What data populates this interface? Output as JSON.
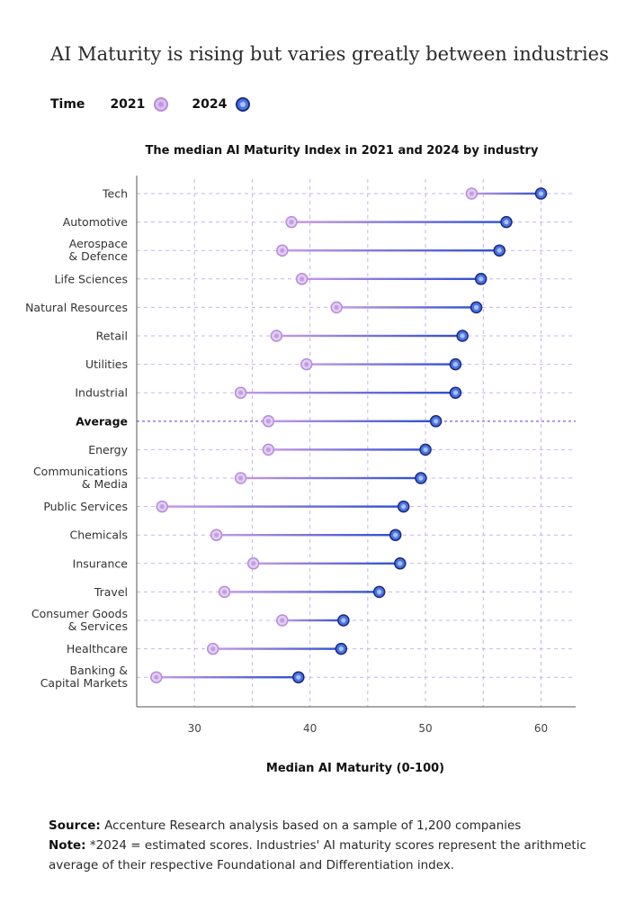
{
  "title": "AI Maturity is rising but varies greatly between industries",
  "legend": {
    "label": "Time",
    "items": [
      {
        "name": "2021",
        "color": "#dcc0ee"
      },
      {
        "name": "2024",
        "color": "#4b73e8"
      }
    ]
  },
  "chart_data": {
    "type": "dumbbell",
    "title": "The median AI Maturity Index in 2021 and 2024 by industry",
    "xlabel": "Median AI Maturity (0-100)",
    "ylabel": "",
    "xlim": [
      25,
      63
    ],
    "xticks": [
      30,
      40,
      50,
      60
    ],
    "grid": true,
    "legend_position": "top-left",
    "colors": {
      "2021": "#dcc0ee",
      "2024": "#4b73e8",
      "grid": "#c9b3ec",
      "average_line": "#a77fe0"
    },
    "categories": [
      "Tech",
      "Automotive",
      "Aerospace\n& Defence",
      "Life Sciences",
      "Natural Resources",
      "Retail",
      "Utilities",
      "Industrial",
      "Average",
      "Energy",
      "Communications\n& Media",
      "Public Services",
      "Chemicals",
      "Insurance",
      "Travel",
      "Consumer Goods\n& Services",
      "Healthcare",
      "Banking &\nCapital Markets"
    ],
    "highlight_category": "Average",
    "series": [
      {
        "name": "2021",
        "values": [
          54,
          38.4,
          37.6,
          39.3,
          42.3,
          37.1,
          39.7,
          34,
          36.4,
          36.4,
          34,
          27.2,
          31.9,
          35.1,
          32.6,
          37.6,
          31.6,
          26.7
        ]
      },
      {
        "name": "2024",
        "values": [
          60,
          57,
          56.4,
          54.8,
          54.4,
          53.2,
          52.6,
          52.6,
          50.9,
          50,
          49.6,
          48.1,
          47.4,
          47.8,
          46,
          42.9,
          42.7,
          39
        ]
      }
    ]
  },
  "notes": {
    "source_label": "Source:",
    "source_text": " Accenture Research analysis based on a sample of 1,200 companies",
    "note_label": "Note:",
    "note_text": " *2024 = estimated scores. Industries' AI maturity scores represent the arithmetic average of their respective Foundational and Differentiation index."
  }
}
